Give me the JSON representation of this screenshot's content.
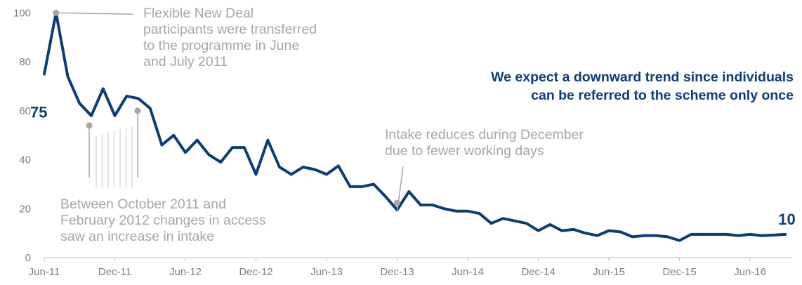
{
  "chart_data": {
    "type": "line",
    "title": "",
    "xlabel": "",
    "ylabel": "",
    "ylim": [
      0,
      100
    ],
    "yticks": [
      0,
      20,
      40,
      60,
      80,
      100
    ],
    "grid": false,
    "xticks": [
      "Jun-11",
      "Dec-11",
      "Jun-12",
      "Dec-12",
      "Jun-13",
      "Dec-13",
      "Jun-14",
      "Dec-14",
      "Jun-15",
      "Dec-15",
      "Jun-16"
    ],
    "x": [
      "Jun-11",
      "Jul-11",
      "Aug-11",
      "Sep-11",
      "Oct-11",
      "Nov-11",
      "Dec-11",
      "Jan-12",
      "Feb-12",
      "Mar-12",
      "Apr-12",
      "May-12",
      "Jun-12",
      "Jul-12",
      "Aug-12",
      "Sep-12",
      "Oct-12",
      "Nov-12",
      "Dec-12",
      "Jan-13",
      "Feb-13",
      "Mar-13",
      "Apr-13",
      "May-13",
      "Jun-13",
      "Jul-13",
      "Aug-13",
      "Sep-13",
      "Oct-13",
      "Nov-13",
      "Dec-13",
      "Jan-14",
      "Feb-14",
      "Mar-14",
      "Apr-14",
      "May-14",
      "Jun-14",
      "Jul-14",
      "Aug-14",
      "Sep-14",
      "Oct-14",
      "Nov-14",
      "Dec-14",
      "Jan-15",
      "Feb-15",
      "Mar-15",
      "Apr-15",
      "May-15",
      "Jun-15",
      "Jul-15",
      "Aug-15",
      "Sep-15",
      "Oct-15",
      "Nov-15",
      "Dec-15",
      "Jan-16",
      "Feb-16",
      "Mar-16",
      "Apr-16",
      "May-16",
      "Jun-16",
      "Jul-16",
      "Aug-16",
      "Sep-16"
    ],
    "series": [
      {
        "name": "",
        "color": "#0b3d78",
        "values": [
          75,
          100,
          74,
          63,
          58,
          69,
          58,
          66,
          65,
          61,
          46,
          50,
          43,
          48,
          42,
          39,
          45,
          45,
          34,
          48,
          37,
          34,
          37,
          36,
          34,
          37.5,
          29,
          29,
          30,
          25,
          19.5,
          27,
          21.5,
          21.5,
          20,
          19,
          19,
          18,
          14,
          16,
          15,
          14,
          11,
          13.5,
          11,
          11.5,
          10,
          9,
          11,
          10.5,
          8.5,
          9,
          9,
          8.5,
          7,
          9.5,
          9.5,
          9.5,
          9.5,
          9,
          9.5,
          9,
          9.2,
          9.5
        ]
      }
    ],
    "labels": {
      "start": "75",
      "end": "10"
    },
    "headline": "We expect a downward trend since individuals\ncan be referred to the scheme only once",
    "annotations": {
      "fnd": "Flexible New Deal\nparticipants were transferred\nto the programme in June\nand July 2011",
      "access": "Between  October 2011 and\nFebruary 2012 changes in access\nsaw an increase in intake",
      "december": "Intake reduces during December\ndue to fewer working days"
    },
    "colors": {
      "line": "#0b3d78",
      "annotation": "#a6a6a6",
      "axis": "#bfbfbf",
      "tick_text": "#7f7f7f"
    }
  }
}
